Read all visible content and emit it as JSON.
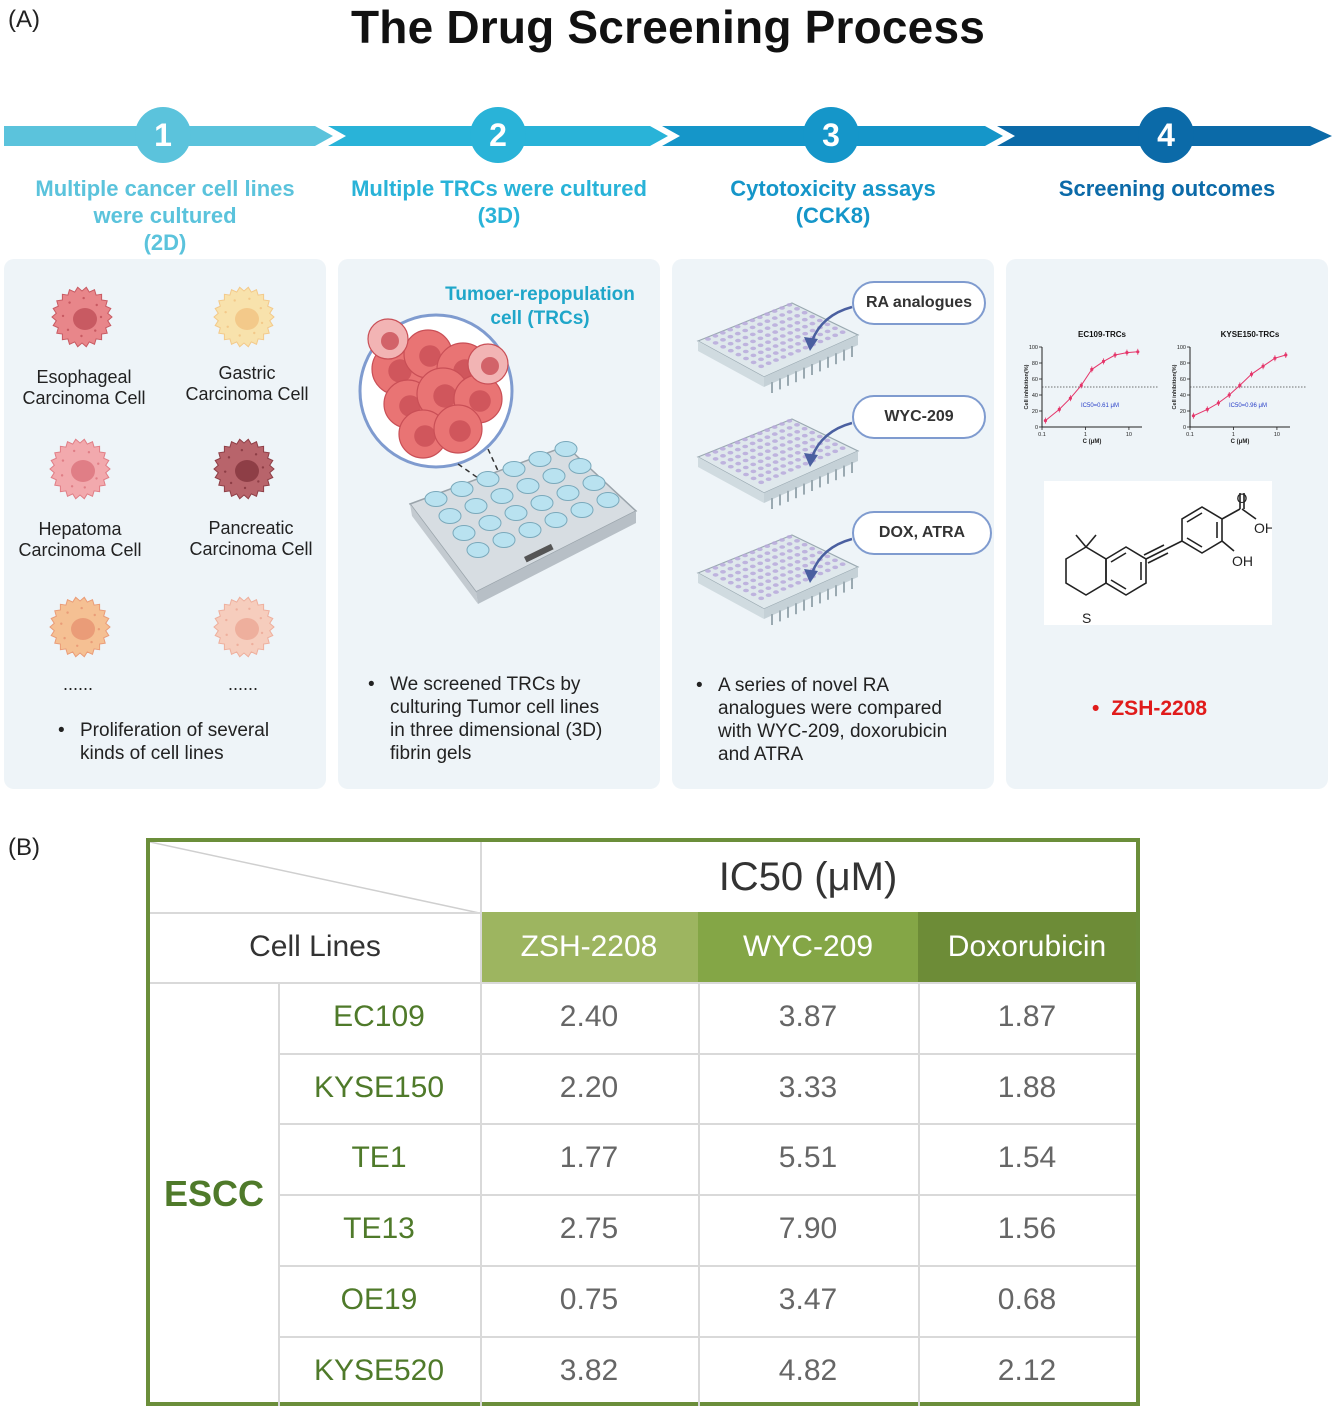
{
  "panel_a_label": "(A)",
  "panel_b_label": "(B)",
  "title": "The Drug Screening Process",
  "steps": [
    {
      "num": "1",
      "title_lines": [
        "Multiple cancer cell lines",
        "were cultured",
        "(2D)"
      ],
      "color": "#5bc3dc"
    },
    {
      "num": "2",
      "title_lines": [
        "Multiple TRCs were cultured",
        "(3D)"
      ],
      "color": "#29b3d8"
    },
    {
      "num": "3",
      "title_lines": [
        "Cytotoxicity assays",
        "(CCK8)"
      ],
      "color": "#1596c9"
    },
    {
      "num": "4",
      "title_lines": [
        "Screening outcomes"
      ],
      "color": "#0b6aa8"
    }
  ],
  "card1": {
    "cells": [
      {
        "label_lines": [
          "Esophageal",
          "Carcinoma Cell"
        ],
        "color": "#e8868a",
        "nucleus": "#c85a62"
      },
      {
        "label_lines": [
          "Gastric",
          "Carcinoma Cell"
        ],
        "color": "#f8e2ac",
        "nucleus": "#f3c98a"
      },
      {
        "label_lines": [
          "Hepatoma",
          "Carcinoma Cell"
        ],
        "color": "#f2a9ad",
        "nucleus": "#e07e86"
      },
      {
        "label_lines": [
          "Pancreatic",
          "Carcinoma Cell"
        ],
        "color": "#b8646b",
        "nucleus": "#8e3e46"
      },
      {
        "label_lines": [
          "......"
        ],
        "color": "#f5c093",
        "nucleus": "#ea9c78"
      },
      {
        "label_lines": [
          "......"
        ],
        "color": "#f6cdbd",
        "nucleus": "#eeaf9d"
      }
    ],
    "bullet_lines": [
      "Proliferation of several",
      "kinds of cell lines"
    ]
  },
  "card2": {
    "heading_lines": [
      "Tumoer-repopulation",
      "cell (TRCs)"
    ],
    "bullet_lines": [
      "We screened TRCs by",
      "culturing Tumor cell lines",
      "in three dimensional (3D)",
      "fibrin gels"
    ]
  },
  "card3": {
    "pills": [
      "RA analogues",
      "WYC-209",
      "DOX, ATRA"
    ],
    "bullet_lines": [
      "A series of novel RA",
      "analogues were compared",
      "with WYC-209, doxorubicin",
      "and ATRA"
    ]
  },
  "card4": {
    "charts": [
      {
        "title": "EC109-TRCs",
        "ylabel": "Cell inhibition(%)",
        "xlabel": "C (μM)",
        "ic50_label": "IC50=0.61 μM"
      },
      {
        "title": "KYSE150-TRCs",
        "ylabel": "Cell inhibition(%)",
        "xlabel": "C (μM)",
        "ic50_label": "IC50=0.96 μM"
      }
    ],
    "chem_labels": {
      "o_top": "O",
      "oh1": "OH",
      "oh2": "OH",
      "s": "S"
    },
    "result": "ZSH-2208"
  },
  "chart_data": [
    {
      "type": "scatter",
      "title": "EC109-TRCs",
      "xlabel": "C (μM)",
      "ylabel": "Cell inhibition(%)",
      "xscale": "log",
      "xlim": [
        0.1,
        20
      ],
      "ylim": [
        0,
        100
      ],
      "yticks": [
        0,
        20,
        40,
        60,
        80,
        100
      ],
      "xticks": [
        "0.1",
        "1",
        "10"
      ],
      "ic50": 0.61,
      "x": [
        0.12,
        0.25,
        0.45,
        0.8,
        1.4,
        2.6,
        4.8,
        9,
        16
      ],
      "y": [
        8,
        22,
        36,
        52,
        72,
        82,
        90,
        93,
        94
      ]
    },
    {
      "type": "scatter",
      "title": "KYSE150-TRCs",
      "xlabel": "C (μM)",
      "ylabel": "Cell inhibition(%)",
      "xscale": "log",
      "xlim": [
        0.1,
        20
      ],
      "ylim": [
        0,
        100
      ],
      "yticks": [
        0,
        20,
        40,
        60,
        80,
        100
      ],
      "xticks": [
        "0.1",
        "1",
        "10"
      ],
      "ic50": 0.96,
      "x": [
        0.12,
        0.25,
        0.45,
        0.8,
        1.4,
        2.6,
        4.8,
        9,
        16
      ],
      "y": [
        14,
        22,
        30,
        40,
        52,
        66,
        76,
        86,
        90
      ]
    }
  ],
  "table": {
    "header_title": "IC50 (μM)",
    "row_header": "Cell Lines",
    "group": "ESCC",
    "columns": [
      {
        "label": "ZSH-2208",
        "color": "#9db560"
      },
      {
        "label": "WYC-209",
        "color": "#84a646"
      },
      {
        "label": "Doxorubicin",
        "color": "#6d8c37"
      }
    ],
    "rows": [
      {
        "name": "EC109",
        "values": [
          "2.40",
          "3.87",
          "1.87"
        ]
      },
      {
        "name": "KYSE150",
        "values": [
          "2.20",
          "3.33",
          "1.88"
        ]
      },
      {
        "name": "TE1",
        "values": [
          "1.77",
          "5.51",
          "1.54"
        ]
      },
      {
        "name": "TE13",
        "values": [
          "2.75",
          "7.90",
          "1.56"
        ]
      },
      {
        "name": "OE19",
        "values": [
          "0.75",
          "3.47",
          "0.68"
        ]
      },
      {
        "name": "KYSE520",
        "values": [
          "3.82",
          "4.82",
          "2.12"
        ]
      }
    ]
  }
}
